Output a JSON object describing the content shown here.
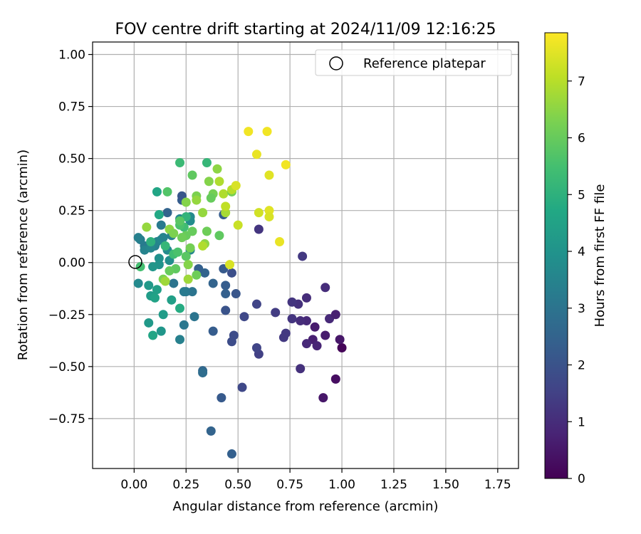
{
  "chart_data": {
    "type": "scatter",
    "title": "FOV centre drift starting at 2024/11/09 12:16:25",
    "xlabel": "Angular distance from reference (arcmin)",
    "ylabel": "Rotation from reference (arcmin)",
    "xlim": [
      -0.2,
      1.85
    ],
    "ylim": [
      -0.99,
      1.06
    ],
    "xticks": [
      0.0,
      0.25,
      0.5,
      0.75,
      1.0,
      1.25,
      1.5,
      1.75
    ],
    "xtick_labels": [
      "0.00",
      "0.25",
      "0.50",
      "0.75",
      "1.00",
      "1.25",
      "1.50",
      "1.75"
    ],
    "yticks": [
      1.0,
      0.75,
      0.5,
      0.25,
      0.0,
      -0.25,
      -0.5,
      -0.75
    ],
    "ytick_labels": [
      "1.00",
      "0.75",
      "0.50",
      "0.25",
      "0.00",
      "−0.25",
      "−0.50",
      "−0.75"
    ],
    "grid": true,
    "legend": {
      "placement": "upper right",
      "entries": [
        "Reference platepar"
      ]
    },
    "reference_point": {
      "label": "Reference platepar",
      "x": 0.0,
      "y": 0.0
    },
    "colorbar": {
      "label": "Hours from first FF file",
      "colormap": "viridis",
      "range": [
        0,
        7.85
      ],
      "ticks": [
        0,
        1,
        2,
        3,
        4,
        5,
        6,
        7
      ],
      "tick_labels": [
        "0",
        "1",
        "2",
        "3",
        "4",
        "5",
        "6",
        "7"
      ]
    },
    "points": [
      {
        "x": 1.0,
        "y": -0.41,
        "t": 0.1
      },
      {
        "x": 0.97,
        "y": -0.56,
        "t": 0.3
      },
      {
        "x": 0.91,
        "y": -0.65,
        "t": 0.5
      },
      {
        "x": 0.99,
        "y": -0.37,
        "t": 0.5
      },
      {
        "x": 0.92,
        "y": -0.35,
        "t": 0.6
      },
      {
        "x": 0.86,
        "y": -0.37,
        "t": 0.7
      },
      {
        "x": 0.87,
        "y": -0.31,
        "t": 0.6
      },
      {
        "x": 0.88,
        "y": -0.4,
        "t": 0.8
      },
      {
        "x": 0.83,
        "y": -0.39,
        "t": 0.9
      },
      {
        "x": 0.94,
        "y": -0.27,
        "t": 0.9
      },
      {
        "x": 0.97,
        "y": -0.25,
        "t": 0.7
      },
      {
        "x": 0.92,
        "y": -0.12,
        "t": 1.0
      },
      {
        "x": 0.83,
        "y": -0.28,
        "t": 0.9
      },
      {
        "x": 0.8,
        "y": -0.28,
        "t": 1.0
      },
      {
        "x": 0.79,
        "y": -0.2,
        "t": 1.1
      },
      {
        "x": 0.76,
        "y": -0.19,
        "t": 1.2
      },
      {
        "x": 0.76,
        "y": -0.27,
        "t": 1.2
      },
      {
        "x": 0.83,
        "y": -0.17,
        "t": 1.0
      },
      {
        "x": 0.8,
        "y": -0.51,
        "t": 1.1
      },
      {
        "x": 0.72,
        "y": -0.36,
        "t": 1.3
      },
      {
        "x": 0.73,
        "y": -0.34,
        "t": 1.3
      },
      {
        "x": 0.68,
        "y": -0.24,
        "t": 1.4
      },
      {
        "x": 0.81,
        "y": 0.03,
        "t": 1.3
      },
      {
        "x": 0.6,
        "y": -0.44,
        "t": 1.5
      },
      {
        "x": 0.59,
        "y": -0.41,
        "t": 1.6
      },
      {
        "x": 0.59,
        "y": -0.2,
        "t": 1.6
      },
      {
        "x": 0.6,
        "y": 0.16,
        "t": 1.2
      },
      {
        "x": 0.53,
        "y": -0.26,
        "t": 1.7
      },
      {
        "x": 0.52,
        "y": -0.6,
        "t": 1.7
      },
      {
        "x": 0.48,
        "y": -0.35,
        "t": 1.8
      },
      {
        "x": 0.47,
        "y": -0.38,
        "t": 1.8
      },
      {
        "x": 0.47,
        "y": -0.92,
        "t": 2.4
      },
      {
        "x": 0.37,
        "y": -0.81,
        "t": 2.5
      },
      {
        "x": 0.42,
        "y": -0.65,
        "t": 2.2
      },
      {
        "x": 0.33,
        "y": -0.52,
        "t": 2.6
      },
      {
        "x": 0.33,
        "y": -0.53,
        "t": 2.8
      },
      {
        "x": 0.38,
        "y": -0.33,
        "t": 2.3
      },
      {
        "x": 0.49,
        "y": -0.15,
        "t": 2.1
      },
      {
        "x": 0.44,
        "y": -0.23,
        "t": 2.0
      },
      {
        "x": 0.47,
        "y": -0.05,
        "t": 1.9
      },
      {
        "x": 0.43,
        "y": -0.03,
        "t": 2.2
      },
      {
        "x": 0.44,
        "y": -0.11,
        "t": 2.3
      },
      {
        "x": 0.44,
        "y": -0.15,
        "t": 2.4
      },
      {
        "x": 0.38,
        "y": -0.1,
        "t": 2.5
      },
      {
        "x": 0.34,
        "y": -0.05,
        "t": 2.5
      },
      {
        "x": 0.31,
        "y": -0.03,
        "t": 2.4
      },
      {
        "x": 0.29,
        "y": -0.26,
        "t": 3.0
      },
      {
        "x": 0.24,
        "y": -0.3,
        "t": 3.1
      },
      {
        "x": 0.22,
        "y": -0.37,
        "t": 3.4
      },
      {
        "x": 0.28,
        "y": -0.14,
        "t": 3.0
      },
      {
        "x": 0.25,
        "y": -0.14,
        "t": 3.1
      },
      {
        "x": 0.24,
        "y": -0.14,
        "t": 3.2
      },
      {
        "x": 0.19,
        "y": -0.1,
        "t": 3.0
      },
      {
        "x": 0.23,
        "y": 0.3,
        "t": 2.3
      },
      {
        "x": 0.23,
        "y": 0.32,
        "t": 2.1
      },
      {
        "x": 0.43,
        "y": 0.23,
        "t": 2.3
      },
      {
        "x": 0.16,
        "y": 0.24,
        "t": 2.5
      },
      {
        "x": 0.13,
        "y": 0.18,
        "t": 3.2
      },
      {
        "x": 0.1,
        "y": 0.08,
        "t": 3.4
      },
      {
        "x": 0.11,
        "y": 0.1,
        "t": 3.5
      },
      {
        "x": 0.13,
        "y": 0.11,
        "t": 3.6
      },
      {
        "x": 0.14,
        "y": 0.12,
        "t": 3.5
      },
      {
        "x": 0.05,
        "y": 0.08,
        "t": 3.2
      },
      {
        "x": 0.03,
        "y": 0.11,
        "t": 3.3
      },
      {
        "x": 0.02,
        "y": 0.12,
        "t": 3.4
      },
      {
        "x": 0.05,
        "y": 0.06,
        "t": 3.5
      },
      {
        "x": 0.08,
        "y": 0.07,
        "t": 3.6
      },
      {
        "x": 0.18,
        "y": 0.13,
        "t": 3.4
      },
      {
        "x": 0.22,
        "y": 0.21,
        "t": 3.6
      },
      {
        "x": 0.27,
        "y": 0.22,
        "t": 3.7
      },
      {
        "x": 0.27,
        "y": 0.2,
        "t": 3.8
      },
      {
        "x": 0.27,
        "y": 0.06,
        "t": 3.6
      },
      {
        "x": 0.16,
        "y": 0.06,
        "t": 3.7
      },
      {
        "x": 0.17,
        "y": 0.01,
        "t": 3.8
      },
      {
        "x": 0.12,
        "y": 0.02,
        "t": 3.9
      },
      {
        "x": 0.12,
        "y": -0.01,
        "t": 4.0
      },
      {
        "x": 0.09,
        "y": -0.02,
        "t": 4.1
      },
      {
        "x": 0.07,
        "y": -0.11,
        "t": 4.2
      },
      {
        "x": 0.08,
        "y": -0.16,
        "t": 4.3
      },
      {
        "x": 0.02,
        "y": -0.1,
        "t": 3.7
      },
      {
        "x": 0.1,
        "y": -0.17,
        "t": 4.5
      },
      {
        "x": 0.11,
        "y": -0.13,
        "t": 4.4
      },
      {
        "x": 0.07,
        "y": -0.29,
        "t": 4.2
      },
      {
        "x": 0.09,
        "y": -0.35,
        "t": 4.6
      },
      {
        "x": 0.13,
        "y": -0.33,
        "t": 4.1
      },
      {
        "x": 0.14,
        "y": -0.25,
        "t": 4.3
      },
      {
        "x": 0.18,
        "y": -0.18,
        "t": 4.4
      },
      {
        "x": 0.22,
        "y": -0.22,
        "t": 4.8
      },
      {
        "x": 0.12,
        "y": 0.23,
        "t": 4.7
      },
      {
        "x": 0.11,
        "y": 0.34,
        "t": 4.6
      },
      {
        "x": 0.16,
        "y": 0.34,
        "t": 5.7
      },
      {
        "x": 0.22,
        "y": 0.48,
        "t": 5.3
      },
      {
        "x": 0.35,
        "y": 0.48,
        "t": 5.2
      },
      {
        "x": 0.28,
        "y": 0.42,
        "t": 5.9
      },
      {
        "x": 0.4,
        "y": 0.45,
        "t": 6.5
      },
      {
        "x": 0.36,
        "y": 0.39,
        "t": 6.4
      },
      {
        "x": 0.41,
        "y": 0.39,
        "t": 6.9
      },
      {
        "x": 0.38,
        "y": 0.33,
        "t": 6.2
      },
      {
        "x": 0.37,
        "y": 0.31,
        "t": 6.0
      },
      {
        "x": 0.3,
        "y": 0.32,
        "t": 6.3
      },
      {
        "x": 0.3,
        "y": 0.3,
        "t": 6.6
      },
      {
        "x": 0.25,
        "y": 0.29,
        "t": 6.4
      },
      {
        "x": 0.25,
        "y": 0.22,
        "t": 5.1
      },
      {
        "x": 0.33,
        "y": 0.24,
        "t": 6.6
      },
      {
        "x": 0.24,
        "y": 0.17,
        "t": 5.4
      },
      {
        "x": 0.22,
        "y": 0.18,
        "t": 5.6
      },
      {
        "x": 0.22,
        "y": 0.2,
        "t": 5.8
      },
      {
        "x": 0.28,
        "y": 0.15,
        "t": 6.0
      },
      {
        "x": 0.25,
        "y": 0.13,
        "t": 6.0
      },
      {
        "x": 0.23,
        "y": 0.12,
        "t": 6.1
      },
      {
        "x": 0.17,
        "y": 0.16,
        "t": 6.5
      },
      {
        "x": 0.19,
        "y": 0.14,
        "t": 6.3
      },
      {
        "x": 0.15,
        "y": 0.08,
        "t": 5.2
      },
      {
        "x": 0.06,
        "y": 0.17,
        "t": 6.6
      },
      {
        "x": 0.08,
        "y": 0.1,
        "t": 5.0
      },
      {
        "x": 0.03,
        "y": -0.02,
        "t": 5.5
      },
      {
        "x": 0.19,
        "y": 0.04,
        "t": 5.4
      },
      {
        "x": 0.21,
        "y": 0.05,
        "t": 5.6
      },
      {
        "x": 0.25,
        "y": 0.03,
        "t": 5.8
      },
      {
        "x": 0.27,
        "y": 0.07,
        "t": 6.2
      },
      {
        "x": 0.26,
        "y": -0.01,
        "t": 6.4
      },
      {
        "x": 0.26,
        "y": -0.08,
        "t": 6.7
      },
      {
        "x": 0.2,
        "y": -0.03,
        "t": 5.9
      },
      {
        "x": 0.17,
        "y": -0.04,
        "t": 6.0
      },
      {
        "x": 0.14,
        "y": -0.08,
        "t": 6.3
      },
      {
        "x": 0.15,
        "y": -0.09,
        "t": 6.7
      },
      {
        "x": 0.3,
        "y": -0.06,
        "t": 6.1
      },
      {
        "x": 0.34,
        "y": 0.09,
        "t": 6.5
      },
      {
        "x": 0.33,
        "y": 0.08,
        "t": 6.9
      },
      {
        "x": 0.35,
        "y": 0.15,
        "t": 6.1
      },
      {
        "x": 0.41,
        "y": 0.13,
        "t": 5.9
      },
      {
        "x": 0.44,
        "y": 0.24,
        "t": 6.8
      },
      {
        "x": 0.44,
        "y": 0.27,
        "t": 7.1
      },
      {
        "x": 0.43,
        "y": 0.33,
        "t": 6.9
      },
      {
        "x": 0.47,
        "y": 0.34,
        "t": 6.2
      },
      {
        "x": 0.47,
        "y": 0.35,
        "t": 7.0
      },
      {
        "x": 0.49,
        "y": 0.37,
        "t": 7.4
      },
      {
        "x": 0.5,
        "y": 0.18,
        "t": 7.2
      },
      {
        "x": 0.46,
        "y": -0.01,
        "t": 7.4
      },
      {
        "x": 0.55,
        "y": 0.63,
        "t": 7.7
      },
      {
        "x": 0.64,
        "y": 0.63,
        "t": 7.7
      },
      {
        "x": 0.59,
        "y": 0.52,
        "t": 7.6
      },
      {
        "x": 0.65,
        "y": 0.42,
        "t": 7.5
      },
      {
        "x": 0.73,
        "y": 0.47,
        "t": 7.7
      },
      {
        "x": 0.6,
        "y": 0.24,
        "t": 7.3
      },
      {
        "x": 0.65,
        "y": 0.25,
        "t": 7.5
      },
      {
        "x": 0.65,
        "y": 0.22,
        "t": 7.4
      },
      {
        "x": 0.7,
        "y": 0.1,
        "t": 7.6
      }
    ]
  }
}
